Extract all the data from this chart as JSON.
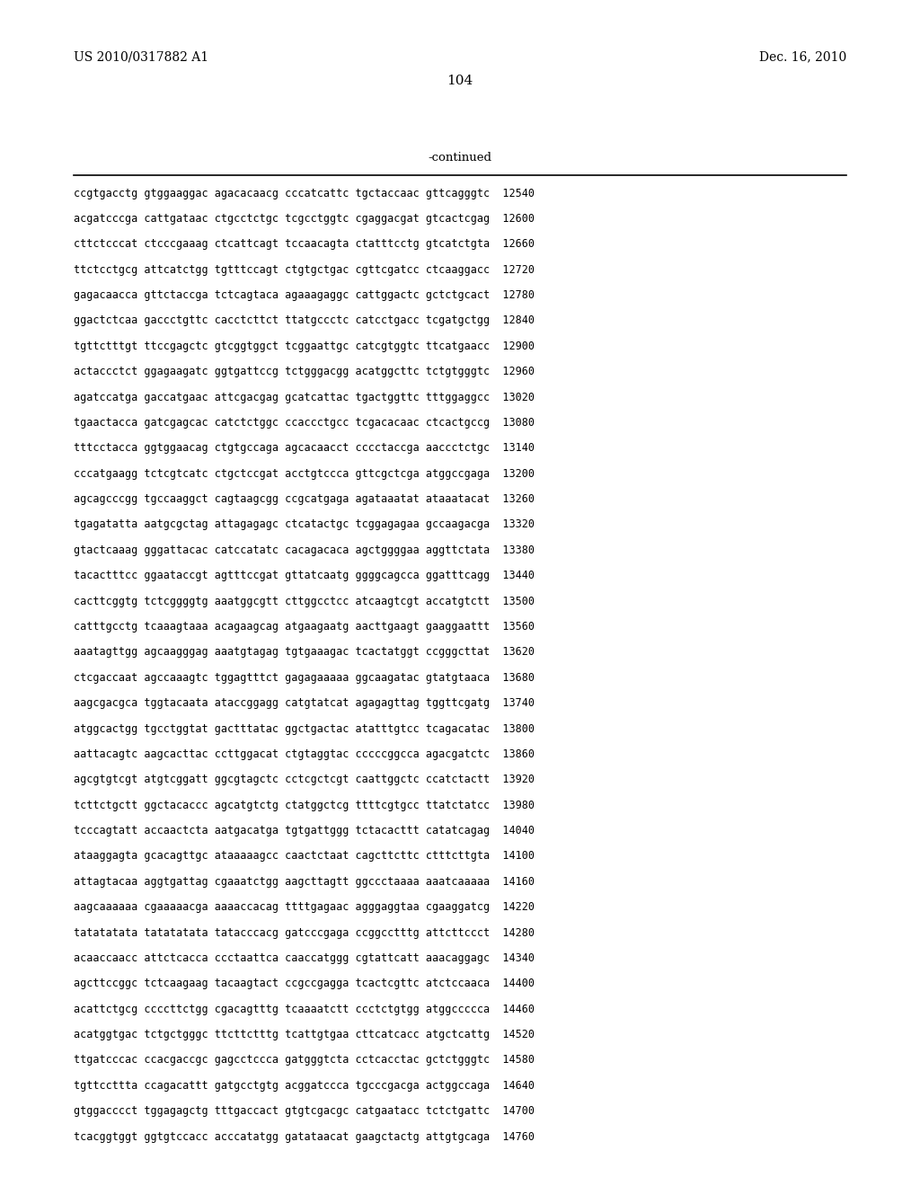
{
  "patent_number": "US 2010/0317882 A1",
  "date": "Dec. 16, 2010",
  "page_number": "104",
  "continued_label": "-continued",
  "background_color": "#ffffff",
  "text_color": "#000000",
  "font_size": 8.5,
  "header_font_size": 10,
  "sequence_lines": [
    "ccgtgacctg gtggaaggac agacacaacg cccatcattc tgctaccaac gttcagggtc  12540",
    "acgatcccga cattgataac ctgcctctgc tcgcctggtc cgaggacgat gtcactcgag  12600",
    "cttctcccat ctcccgaaag ctcattcagt tccaacagta ctatttcctg gtcatctgta  12660",
    "ttctcctgcg attcatctgg tgtttccagt ctgtgctgac cgttcgatcc ctcaaggacc  12720",
    "gagacaacca gttctaccga tctcagtaca agaaagaggc cattggactc gctctgcact  12780",
    "ggactctcaa gaccctgttc cacctcttct ttatgccctc catcctgacc tcgatgctgg  12840",
    "tgttctttgt ttccgagctc gtcggtggct tcggaattgc catcgtggtc ttcatgaacc  12900",
    "actaccctct ggagaagatc ggtgattccg tctgggacgg acatggcttc tctgtgggtc  12960",
    "agatccatga gaccatgaac attcgacgag gcatcattac tgactggttc tttggaggcc  13020",
    "tgaactacca gatcgagcac catctctggc ccaccctgcc tcgacacaac ctcactgccg  13080",
    "tttcctacca ggtggaacag ctgtgccaga agcacaacct cccctaccga aaccctctgc  13140",
    "cccatgaagg tctcgtcatc ctgctccgat acctgtccca gttcgctcga atggccgaga  13200",
    "agcagcccgg tgccaaggct cagtaagcgg ccgcatgaga agataaatat ataaatacat  13260",
    "tgagatatta aatgcgctag attagagagc ctcatactgc tcggagagaa gccaagacga  13320",
    "gtactcaaag gggattacac catccatatc cacagacaca agctggggaa aggttctata  13380",
    "tacactttcc ggaataccgt agtttccgat gttatcaatg ggggcagcca ggatttcagg  13440",
    "cacttcggtg tctcggggtg aaatggcgtt cttggcctcc atcaagtcgt accatgtctt  13500",
    "catttgcctg tcaaagtaaa acagaagcag atgaagaatg aacttgaagt gaaggaattt  13560",
    "aaatagttgg agcaagggag aaatgtagag tgtgaaagac tcactatggt ccgggcttat  13620",
    "ctcgaccaat agccaaagtc tggagtttct gagagaaaaa ggcaagatac gtatgtaaca  13680",
    "aagcgacgca tggtacaata ataccggagg catgtatcat agagagttag tggttcgatg  13740",
    "atggcactgg tgcctggtat gactttatac ggctgactac atatttgtcc tcagacatac  13800",
    "aattacagtc aagcacttac ccttggacat ctgtaggtac cccccggcca agacgatctc  13860",
    "agcgtgtcgt atgtcggatt ggcgtagctc cctcgctcgt caattggctc ccatctactt  13920",
    "tcttctgctt ggctacaccc agcatgtctg ctatggctcg ttttcgtgcc ttatctatcc  13980",
    "tcccagtatt accaactcta aatgacatga tgtgattggg tctacacttt catatcagag  14040",
    "ataaggagta gcacagttgc ataaaaagcc caactctaat cagcttcttc ctttcttgta  14100",
    "attagtacaa aggtgattag cgaaatctgg aagcttagtt ggccctaaaa aaatcaaaaa  14160",
    "aagcaaaaaa cgaaaaacga aaaaccacag ttttgagaac agggaggtaa cgaaggatcg  14220",
    "tatatatata tatatatata tatacccacg gatcccgaga ccggcctttg attcttccct  14280",
    "acaaccaacc attctcacca ccctaattca caaccatggg cgtattcatt aaacaggagc  14340",
    "agcttccggc tctcaagaag tacaagtact ccgccgagga tcactcgttc atctccaaca  14400",
    "acattctgcg ccccttctgg cgacagtttg tcaaaatctt ccctctgtgg atggccccca  14460",
    "acatggtgac tctgctgggc ttcttctttg tcattgtgaa cttcatcacc atgctcattg  14520",
    "ttgatcccac ccacgaccgc gagcctccca gatgggtcta cctcacctac gctctgggtc  14580",
    "tgttccttta ccagacattt gatgcctgtg acggatccca tgcccgacga actggccaga  14640",
    "gtggacccct tggagagctg tttgaccact gtgtcgacgc catgaatacc tctctgattc  14700",
    "tcacggtggt ggtgtccacc acccatatgg gatataacat gaagctactg attgtgcaga  14760"
  ]
}
